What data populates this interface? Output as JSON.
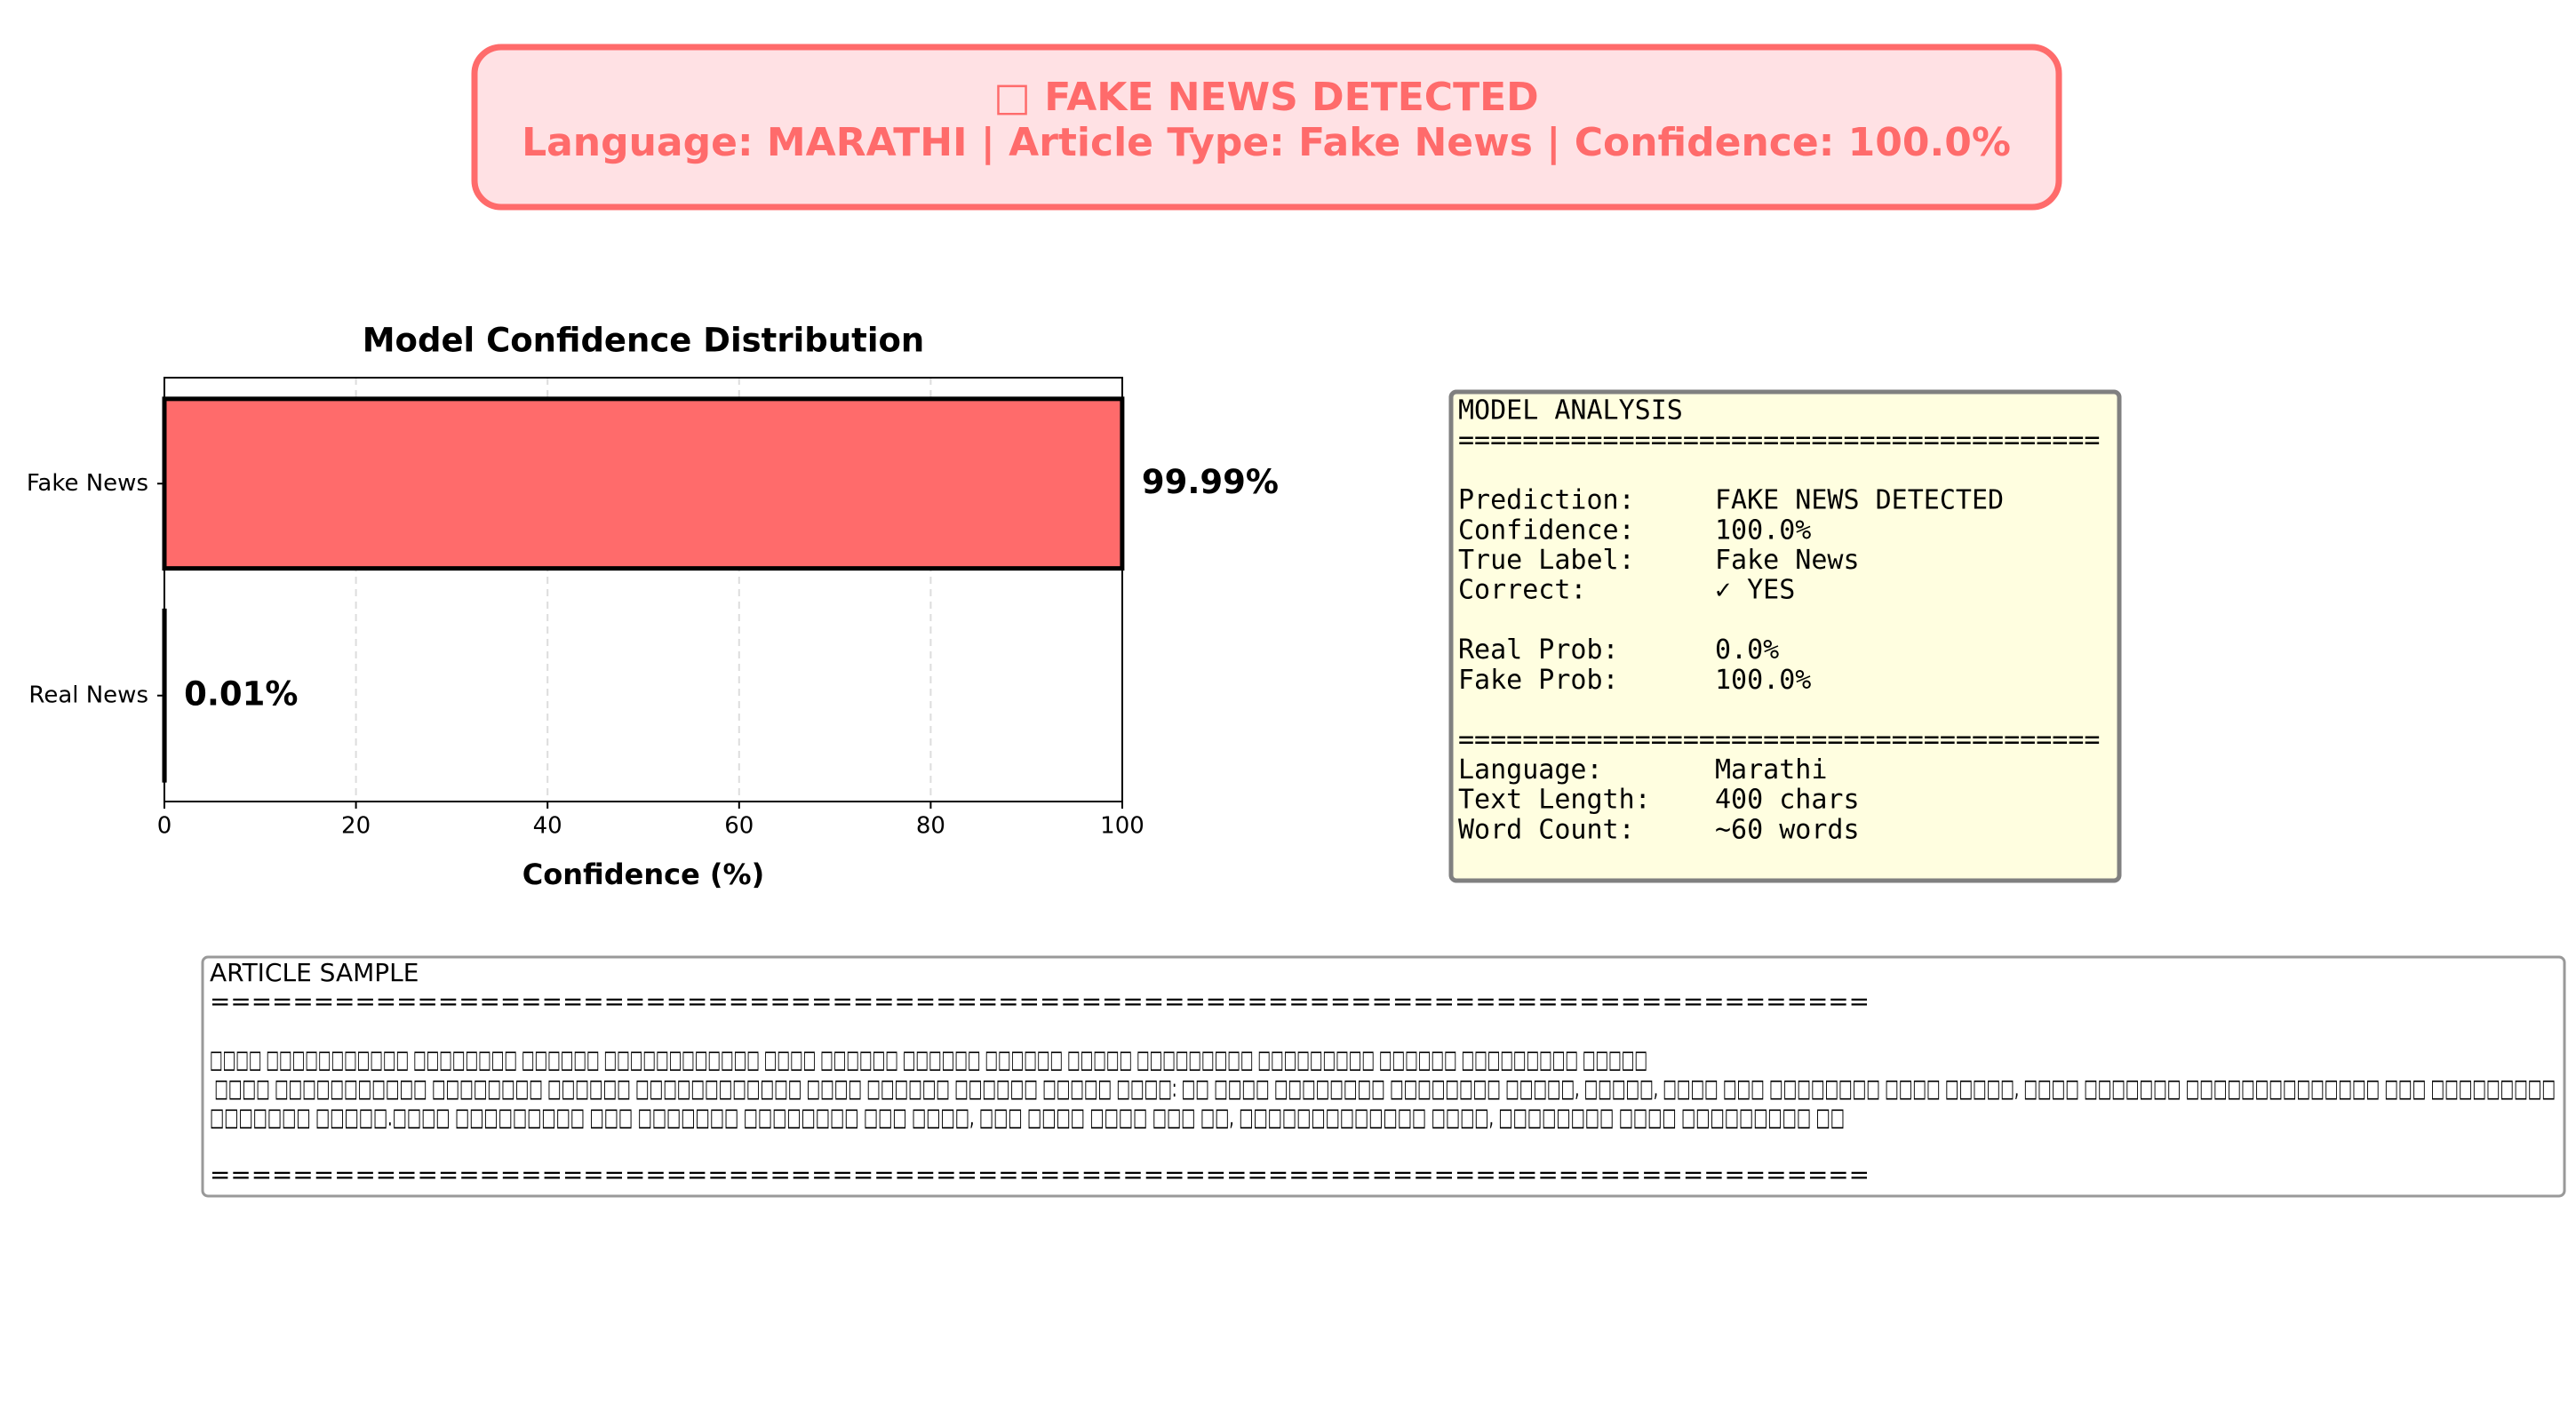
{
  "header": {
    "title": "□ FAKE NEWS DETECTED",
    "subtitle": "Language: MARATHI | Article Type: Fake News | Confidence: 100.0%"
  },
  "chart_data": {
    "type": "barh",
    "title": "Model Confidence Distribution",
    "xlabel": "Confidence (%)",
    "categories": [
      "Fake News",
      "Real News"
    ],
    "values": [
      99.99,
      0.01
    ],
    "value_labels": [
      "99.99%",
      "0.01%"
    ],
    "colors": [
      "#ff6b6b",
      "#4ecdc4"
    ],
    "xlim": [
      0,
      100
    ],
    "xticks": [
      0,
      20,
      40,
      60,
      80,
      100
    ],
    "grid": true
  },
  "analysis": {
    "groups": [
      [
        "MODEL ANALYSIS",
        "========================================"
      ],
      [
        "Prediction:     FAKE NEWS DETECTED",
        "Confidence:     100.0%",
        "True Label:     Fake News",
        "Correct:        ✓ YES"
      ],
      [
        "Real Prob:      0.0%",
        "Fake Prob:      100.0%"
      ],
      [
        "========================================",
        "Language:       Marathi",
        "Text Length:    400 chars",
        "Word Count:     ~60 words"
      ]
    ]
  },
  "article": {
    "groups": [
      [
        "ARTICLE SAMPLE",
        "================================================================================"
      ],
      [
        "□□□□ □□□□□□□□□□□ □□□□□□□□ □□□□□□ □□□□□□□□□□□□ □□□□ □□□□□□ □□□□□□ □□□□□□ □□□□□ □□□□□□□□□ □□□□□□□□□ □□□□□□ □□□□□□□□□ □□□□□",
        " □□□□ □□□□□□□□□□□ □□□□□□□□ □□□□□□ □□□□□□□□□□□□ □□□□ □□□□□□ □□□□□□ □□□□□ □□□□: □□ □□□□ □□□□□□□□ □□□□□□□□ □□□□□, □□□□□, □□□□ □□□ □□□□□□□□ □□□□ □□□□□, □□□□ □□□□□□□ □□□□□□□□□□□□□□ □□□ □□□□□□□□□",
        "□□□□□□□ □□□□□.□□□□ □□□□□□□□□ □□□ □□□□□□□ □□□□□□□□ □□□ □□□□, □□□ □□□□ □□□□ □□□ □□, □□□□□□□□□□□□□ □□□□, □□□□□□□□ □□□□ □□□□□□□□□ □□"
      ],
      [
        "================================================================================"
      ]
    ]
  }
}
